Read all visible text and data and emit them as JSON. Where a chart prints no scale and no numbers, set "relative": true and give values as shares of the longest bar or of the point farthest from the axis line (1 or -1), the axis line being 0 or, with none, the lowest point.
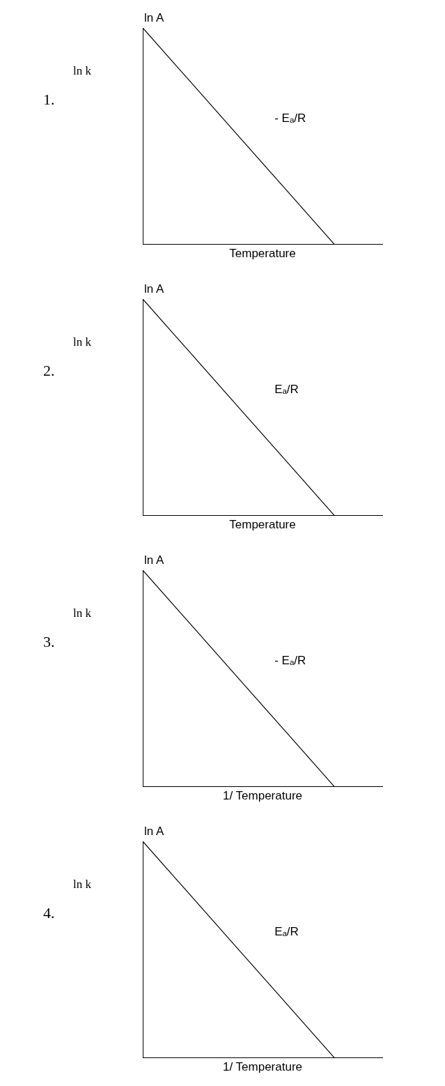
{
  "chart_data": [
    {
      "type": "line",
      "title": "1.",
      "ylabel": "ln k",
      "xlabel": "Temperature",
      "relative": true,
      "tick_labels": false,
      "marker": "none",
      "categories": [
        null,
        null,
        null,
        null,
        null,
        null
      ],
      "series": [
        {
          "color": "#000000",
          "values": [
            1,
            0.75,
            0.5,
            0.25,
            0,
            null
          ]
        }
      ],
      "annotations": [
        "ln A",
        "- Eₐ/R"
      ]
    },
    {
      "type": "line",
      "title": "2.",
      "ylabel": "ln k",
      "xlabel": "Temperature",
      "relative": true,
      "tick_labels": false,
      "marker": "none",
      "categories": [
        null,
        null,
        null,
        null,
        null,
        null
      ],
      "series": [
        {
          "color": "#000000",
          "values": [
            1,
            0.75,
            0.5,
            0.25,
            0,
            null
          ]
        }
      ],
      "annotations": [
        "ln A",
        "Eₐ/R"
      ]
    },
    {
      "type": "line",
      "title": "3.",
      "ylabel": "ln k",
      "xlabel": "1/ Temperature",
      "relative": true,
      "tick_labels": false,
      "marker": "none",
      "categories": [
        null,
        null,
        null,
        null,
        null,
        null
      ],
      "series": [
        {
          "color": "#000000",
          "values": [
            1,
            0.75,
            0.5,
            0.25,
            0,
            null
          ]
        }
      ],
      "annotations": [
        "ln A",
        "- Eₐ/R"
      ]
    },
    {
      "type": "line",
      "title": "4.",
      "ylabel": "ln k",
      "xlabel": "1/ Temperature",
      "relative": true,
      "tick_labels": false,
      "marker": "none",
      "categories": [
        null,
        null,
        null,
        null,
        null,
        null
      ],
      "series": [
        {
          "color": "#000000",
          "values": [
            1,
            0.75,
            0.5,
            0.25,
            0,
            null
          ]
        }
      ],
      "annotations": [
        "ln A",
        "Eₐ/R"
      ]
    }
  ]
}
